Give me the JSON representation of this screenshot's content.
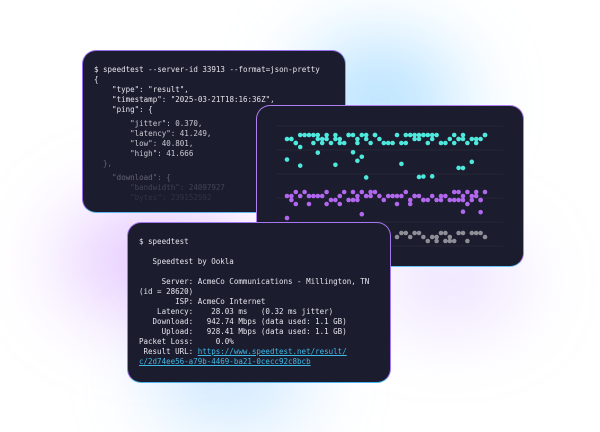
{
  "json_terminal": {
    "lines": [
      "$ speedtest --server-id 33913 --format=json-pretty",
      "{",
      "    \"type\": \"result\",",
      "    \"timestamp\": \"2025-03-21T18:16:36Z\",",
      "    \"ping\": {",
      "        \"jitter\": 0.370,",
      "        \"latency\": 41.249,",
      "        \"low\": 40.801,",
      "        \"high\": 41.666",
      "  },",
      "    \"download\": {",
      "        \"bandwidth\": 24097927",
      "        \"bytes\": 239152592"
    ]
  },
  "dot_chart": {
    "colors": {
      "cyan": "#4ee8dc",
      "purple": "#b168ee",
      "gray": "#8e8e96"
    }
  },
  "cli_terminal": {
    "lines": [
      "$ speedtest",
      "",
      "   Speedtest by Ookla",
      "",
      "     Server: AcmeCo Communications - Millington, TN",
      "(id = 28620)",
      "        ISP: AcmeCo Internet",
      "    Latency:    28.03 ms   (0.32 ms jitter)",
      "   Download:   942.74 Mbps (data used: 1.1 GB)",
      "     Upload:   928.41 Mbps (data used: 1.1 GB)",
      "Packet Loss:     0.0%",
      " Result URL: "
    ],
    "result_url_line1": "https://www.speedtest.net/result/",
    "result_url_line2": "c/2d74ee56-a79b-4469-ba21-0cecc92c8bcb"
  }
}
